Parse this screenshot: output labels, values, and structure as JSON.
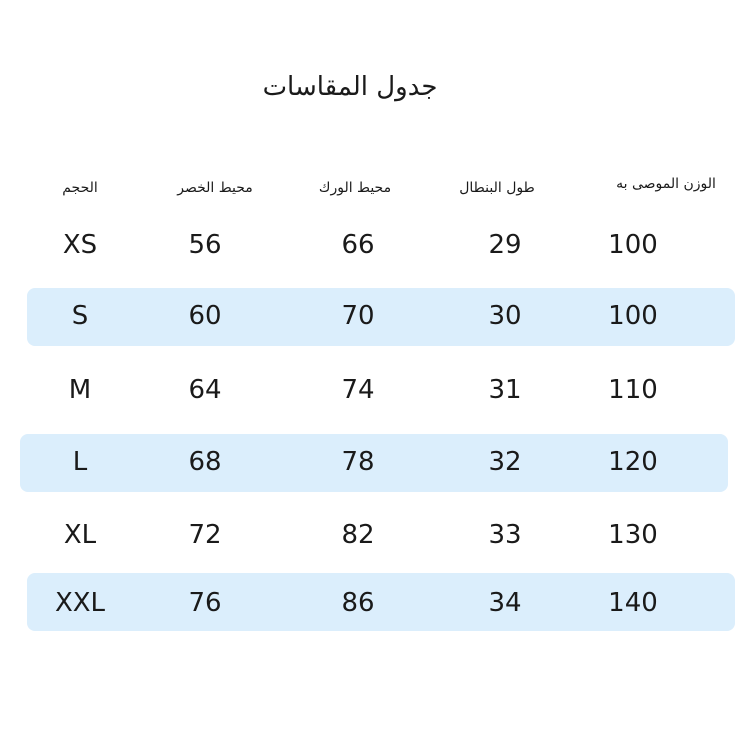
{
  "title": "جدول المقاسات",
  "highlight_color": "#dbeefc",
  "headers": [
    "الحجم",
    "محيط الخصر",
    "محيط الورك",
    "طول البنطال",
    "الوزن الموصى به"
  ],
  "rows": [
    {
      "size": "XS",
      "waist": "56",
      "hip": "66",
      "length": "29",
      "weight": "100",
      "highlighted": false
    },
    {
      "size": "S",
      "waist": "60",
      "hip": "70",
      "length": "30",
      "weight": "100",
      "highlighted": true
    },
    {
      "size": "M",
      "waist": "64",
      "hip": "74",
      "length": "31",
      "weight": "110",
      "highlighted": false
    },
    {
      "size": "L",
      "waist": "68",
      "hip": "78",
      "length": "32",
      "weight": "120",
      "highlighted": true
    },
    {
      "size": "XL",
      "waist": "72",
      "hip": "82",
      "length": "33",
      "weight": "130",
      "highlighted": false
    },
    {
      "size": "XXL",
      "waist": "76",
      "hip": "86",
      "length": "34",
      "weight": "140",
      "highlighted": true
    }
  ]
}
